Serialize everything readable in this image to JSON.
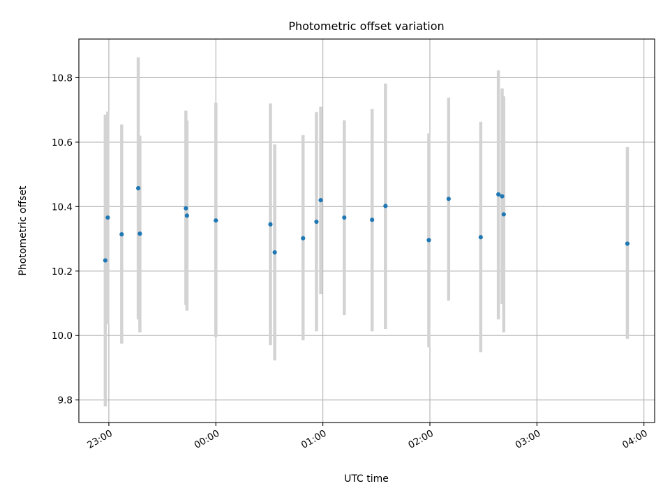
{
  "chart_data": {
    "type": "scatter",
    "title": "Photometric offset variation",
    "xlabel": "UTC time",
    "ylabel": "Photometric offset",
    "x_ticks": [
      "23:00",
      "00:00",
      "01:00",
      "02:00",
      "03:00",
      "04:00"
    ],
    "y_ticks": [
      "9.8",
      "10.0",
      "10.2",
      "10.4",
      "10.6",
      "10.8"
    ],
    "xlim_hours": [
      -0.28,
      5.1
    ],
    "ylim": [
      9.73,
      10.92
    ],
    "grid": true,
    "series": [
      {
        "color": "#1f77b4",
        "error_color": "#d3d3d3",
        "points": [
          {
            "t": -0.033,
            "y": 10.233,
            "lo": 9.78,
            "hi": 10.685
          },
          {
            "t": -0.01,
            "y": 10.366,
            "lo": 10.035,
            "hi": 10.695
          },
          {
            "t": 0.12,
            "y": 10.314,
            "lo": 9.975,
            "hi": 10.655
          },
          {
            "t": 0.275,
            "y": 10.457,
            "lo": 10.05,
            "hi": 10.863
          },
          {
            "t": 0.29,
            "y": 10.316,
            "lo": 10.01,
            "hi": 10.62
          },
          {
            "t": 0.72,
            "y": 10.395,
            "lo": 10.095,
            "hi": 10.698
          },
          {
            "t": 0.73,
            "y": 10.372,
            "lo": 10.077,
            "hi": 10.667
          },
          {
            "t": 1.0,
            "y": 10.357,
            "lo": 9.995,
            "hi": 10.722
          },
          {
            "t": 1.51,
            "y": 10.345,
            "lo": 9.97,
            "hi": 10.72
          },
          {
            "t": 1.55,
            "y": 10.258,
            "lo": 9.923,
            "hi": 10.593
          },
          {
            "t": 1.815,
            "y": 10.302,
            "lo": 9.985,
            "hi": 10.622
          },
          {
            "t": 1.94,
            "y": 10.353,
            "lo": 10.013,
            "hi": 10.693
          },
          {
            "t": 1.98,
            "y": 10.42,
            "lo": 10.128,
            "hi": 10.71
          },
          {
            "t": 2.2,
            "y": 10.366,
            "lo": 10.063,
            "hi": 10.668
          },
          {
            "t": 2.46,
            "y": 10.359,
            "lo": 10.013,
            "hi": 10.703
          },
          {
            "t": 2.585,
            "y": 10.402,
            "lo": 10.02,
            "hi": 10.782
          },
          {
            "t": 2.99,
            "y": 10.296,
            "lo": 9.963,
            "hi": 10.627
          },
          {
            "t": 3.175,
            "y": 10.424,
            "lo": 10.108,
            "hi": 10.738
          },
          {
            "t": 3.475,
            "y": 10.305,
            "lo": 9.948,
            "hi": 10.663
          },
          {
            "t": 3.64,
            "y": 10.438,
            "lo": 10.05,
            "hi": 10.823
          },
          {
            "t": 3.675,
            "y": 10.432,
            "lo": 10.098,
            "hi": 10.767
          },
          {
            "t": 3.69,
            "y": 10.376,
            "lo": 10.01,
            "hi": 10.742
          },
          {
            "t": 4.845,
            "y": 10.285,
            "lo": 9.99,
            "hi": 10.585
          }
        ]
      }
    ]
  }
}
